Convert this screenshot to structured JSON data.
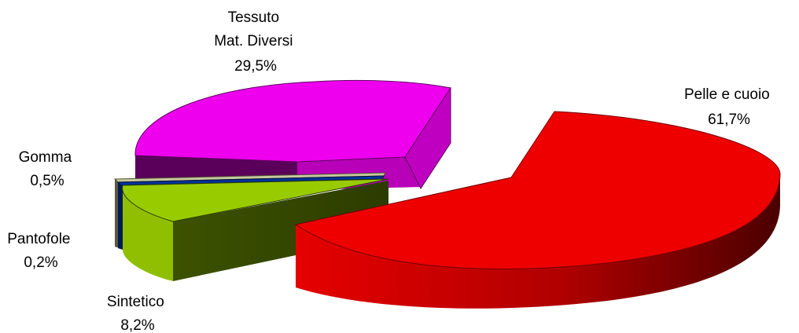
{
  "chart_data": {
    "type": "pie",
    "title": "",
    "slices": [
      {
        "label_lines": [
          "Pelle e cuoio"
        ],
        "value": 61.7,
        "display": "61,7%",
        "color": "#e80000"
      },
      {
        "label_lines": [
          "Sintetico"
        ],
        "value": 8.2,
        "display": "8,2%",
        "color": "#86b300"
      },
      {
        "label_lines": [
          "Pantofole"
        ],
        "value": 0.2,
        "display": "0,2%",
        "color": "#003399"
      },
      {
        "label_lines": [
          "Gomma"
        ],
        "value": 0.5,
        "display": "0,5%",
        "color": "#c8c8a0"
      },
      {
        "label_lines": [
          "Tessuto",
          "Mat. Diversi"
        ],
        "value": 29.5,
        "display": "29,5%",
        "color": "#ee00ee"
      }
    ]
  }
}
